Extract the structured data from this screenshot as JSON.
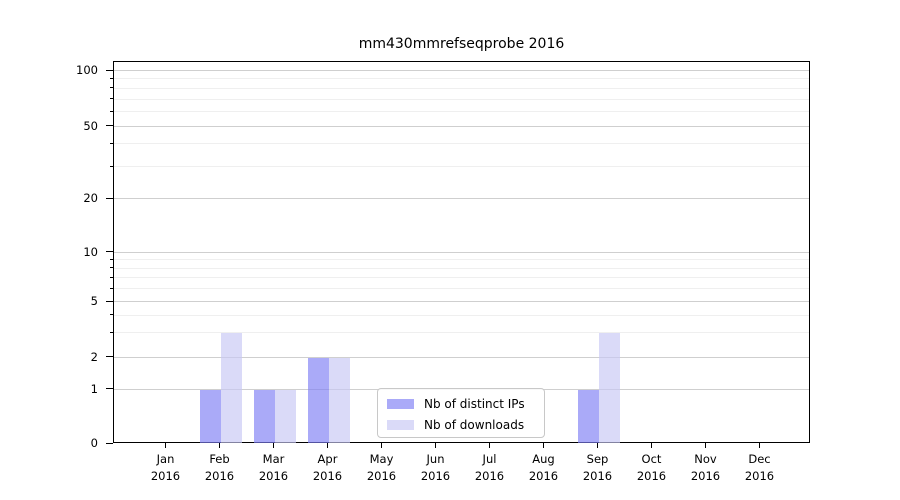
{
  "title": "mm430mmrefseqprobe 2016",
  "chart_data": {
    "type": "bar",
    "title": "mm430mmrefseqprobe 2016",
    "categories": [
      {
        "month": "Jan",
        "year": "2016"
      },
      {
        "month": "Feb",
        "year": "2016"
      },
      {
        "month": "Mar",
        "year": "2016"
      },
      {
        "month": "Apr",
        "year": "2016"
      },
      {
        "month": "May",
        "year": "2016"
      },
      {
        "month": "Jun",
        "year": "2016"
      },
      {
        "month": "Jul",
        "year": "2016"
      },
      {
        "month": "Aug",
        "year": "2016"
      },
      {
        "month": "Sep",
        "year": "2016"
      },
      {
        "month": "Oct",
        "year": "2016"
      },
      {
        "month": "Nov",
        "year": "2016"
      },
      {
        "month": "Dec",
        "year": "2016"
      }
    ],
    "series": [
      {
        "name": "Nb of distinct IPs",
        "color": "#aaaaf8",
        "values": [
          0,
          1,
          1,
          2,
          0,
          0,
          0,
          0,
          1,
          0,
          0,
          0
        ]
      },
      {
        "name": "Nb of downloads",
        "color": "#dadaf8",
        "values": [
          0,
          3,
          1,
          2,
          0,
          0,
          0,
          0,
          3,
          0,
          0,
          0
        ]
      }
    ],
    "y_axis": {
      "scale": "symlog",
      "tick_values": [
        0,
        1,
        2,
        5,
        10,
        20,
        50,
        100
      ],
      "minor_gridline_values": [
        3,
        4,
        6,
        7,
        8,
        9,
        30,
        40,
        60,
        70,
        80,
        90
      ],
      "top_value": 110
    },
    "xlabel": "",
    "ylabel": "",
    "grid": "horizontal",
    "legend_position": "lower-center-inside"
  }
}
